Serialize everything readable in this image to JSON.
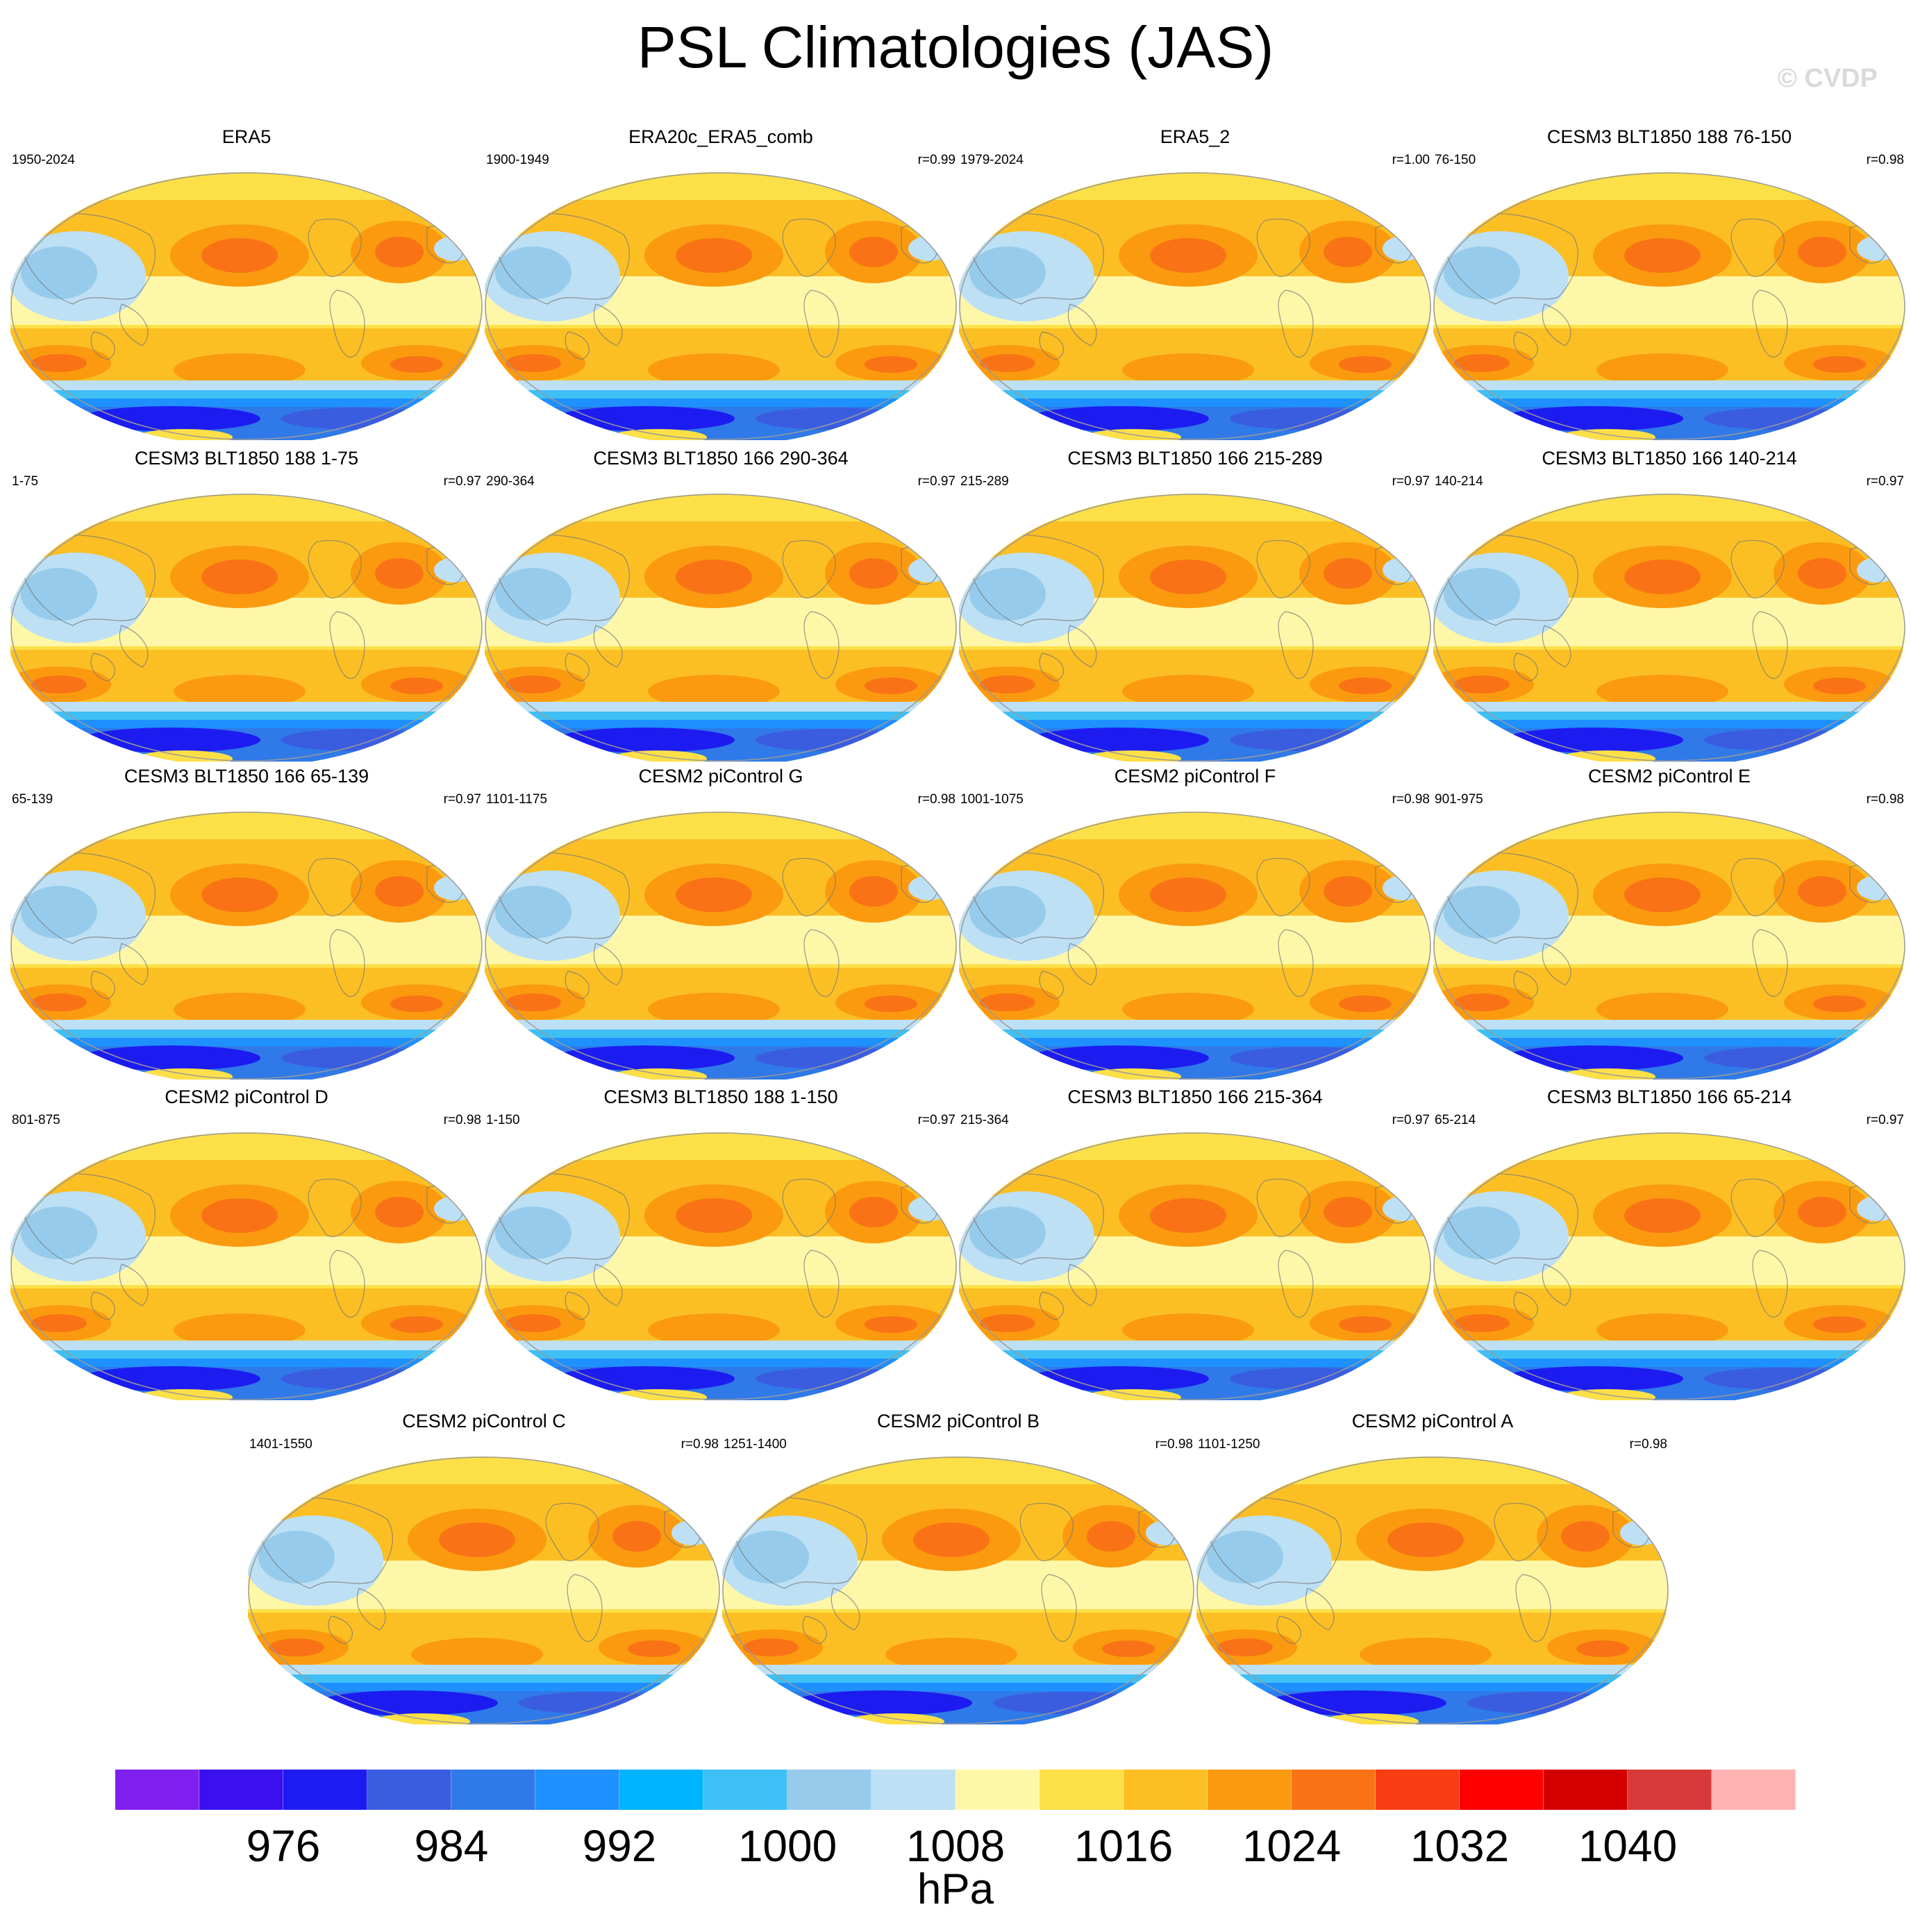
{
  "title": "PSL Climatologies (JAS)",
  "watermark": "© CVDP",
  "panels": [
    {
      "name": "ERA5",
      "years": "1950-2024",
      "r": ""
    },
    {
      "name": "ERA20c_ERA5_comb",
      "years": "1900-1949",
      "r": "r=0.99"
    },
    {
      "name": "ERA5_2",
      "years": "1979-2024",
      "r": "r=1.00"
    },
    {
      "name": "CESM3 BLT1850 188 76-150",
      "years": "76-150",
      "r": "r=0.98"
    },
    {
      "name": "CESM3 BLT1850 188 1-75",
      "years": "1-75",
      "r": "r=0.97"
    },
    {
      "name": "CESM3 BLT1850 166 290-364",
      "years": "290-364",
      "r": "r=0.97"
    },
    {
      "name": "CESM3 BLT1850 166 215-289",
      "years": "215-289",
      "r": "r=0.97"
    },
    {
      "name": "CESM3 BLT1850 166 140-214",
      "years": "140-214",
      "r": "r=0.97"
    },
    {
      "name": "CESM3 BLT1850 166 65-139",
      "years": "65-139",
      "r": "r=0.97"
    },
    {
      "name": "CESM2 piControl G",
      "years": "1101-1175",
      "r": "r=0.98"
    },
    {
      "name": "CESM2 piControl F",
      "years": "1001-1075",
      "r": "r=0.98"
    },
    {
      "name": "CESM2 piControl E",
      "years": "901-975",
      "r": "r=0.98"
    },
    {
      "name": "CESM2 piControl D",
      "years": "801-875",
      "r": "r=0.98"
    },
    {
      "name": "CESM3 BLT1850 188 1-150",
      "years": "1-150",
      "r": "r=0.97"
    },
    {
      "name": "CESM3 BLT1850 166 215-364",
      "years": "215-364",
      "r": "r=0.97"
    },
    {
      "name": "CESM3 BLT1850 166 65-214",
      "years": "65-214",
      "r": "r=0.97"
    },
    {
      "name": "CESM2 piControl C",
      "years": "1401-1550",
      "r": "r=0.98"
    },
    {
      "name": "CESM2 piControl B",
      "years": "1251-1400",
      "r": "r=0.98"
    },
    {
      "name": "CESM2 piControl A",
      "years": "1101-1250",
      "r": "r=0.98"
    }
  ],
  "colorbar": {
    "colors": [
      "#7f1ff0",
      "#3a10f0",
      "#1c1cf0",
      "#3a5de0",
      "#2f7ae8",
      "#1e90ff",
      "#00b4ff",
      "#3ec0f5",
      "#96cbeb",
      "#bde0f5",
      "#fff7a8",
      "#fde047",
      "#fbbf24",
      "#fb9a0e",
      "#f97316",
      "#fa3c12",
      "#ff0000",
      "#d40000",
      "#d83a3a",
      "#ffb3b3"
    ],
    "ticks": [
      "976",
      "984",
      "992",
      "1000",
      "1008",
      "1016",
      "1024",
      "1032",
      "1040"
    ],
    "units": "hPa"
  }
}
